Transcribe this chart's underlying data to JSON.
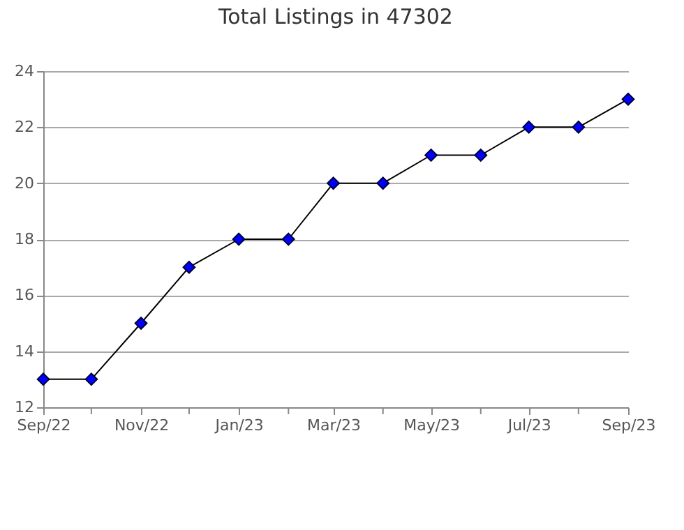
{
  "chart_data": {
    "type": "line",
    "title": "Total Listings in 47302",
    "x": [
      "2022-09",
      "2022-10",
      "2022-11",
      "2022-12",
      "2023-01",
      "2023-02",
      "2023-03",
      "2023-04",
      "2023-05",
      "2023-06",
      "2023-07",
      "2023-08",
      "2023-09"
    ],
    "series": [
      {
        "color": "#0000ff",
        "values": [
          13,
          13,
          15,
          17,
          18,
          18,
          20,
          20,
          21,
          21,
          22,
          22,
          23
        ]
      }
    ],
    "xlim": [
      "2022-09",
      "2023-09"
    ],
    "xticks": [
      {
        "value": "2022-09",
        "label": "Sep/22"
      },
      {
        "value": "2022-10",
        "label": null
      },
      {
        "value": "2022-11",
        "label": "Nov/22"
      },
      {
        "value": "2022-12",
        "label": null
      },
      {
        "value": "2023-01",
        "label": "Jan/23"
      },
      {
        "value": "2023-02",
        "label": null
      },
      {
        "value": "2023-03",
        "label": "Mar/23"
      },
      {
        "value": "2023-04",
        "label": null
      },
      {
        "value": "2023-05",
        "label": "May/23"
      },
      {
        "value": "2023-06",
        "label": null
      },
      {
        "value": "2023-07",
        "label": "Jul/23"
      },
      {
        "value": "2023-08",
        "label": null
      },
      {
        "value": "2023-09",
        "label": "Sep/23"
      }
    ],
    "ylim": [
      12,
      24
    ],
    "yticks": [
      12,
      14,
      16,
      18,
      20,
      22,
      24
    ],
    "grid": "y",
    "marker": "diamond",
    "line_style": "solid"
  }
}
